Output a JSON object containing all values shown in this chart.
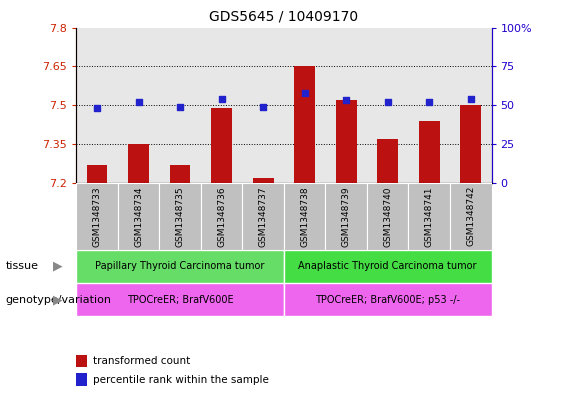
{
  "title": "GDS5645 / 10409170",
  "samples": [
    "GSM1348733",
    "GSM1348734",
    "GSM1348735",
    "GSM1348736",
    "GSM1348737",
    "GSM1348738",
    "GSM1348739",
    "GSM1348740",
    "GSM1348741",
    "GSM1348742"
  ],
  "transformed_count": [
    7.27,
    7.35,
    7.27,
    7.49,
    7.22,
    7.65,
    7.52,
    7.37,
    7.44,
    7.5
  ],
  "percentile_rank": [
    48,
    52,
    49,
    54,
    49,
    58,
    53,
    52,
    52,
    54
  ],
  "ylim_left": [
    7.2,
    7.8
  ],
  "ylim_right": [
    0,
    100
  ],
  "yticks_left": [
    7.2,
    7.35,
    7.5,
    7.65,
    7.8
  ],
  "yticks_right": [
    0,
    25,
    50,
    75,
    100
  ],
  "grid_values": [
    7.35,
    7.5,
    7.65
  ],
  "bar_color": "#bb1111",
  "dot_color": "#2222cc",
  "tissue_groups": [
    {
      "label": "Papillary Thyroid Carcinoma tumor",
      "start": 0,
      "end": 5,
      "color": "#66dd66"
    },
    {
      "label": "Anaplastic Thyroid Carcinoma tumor",
      "start": 5,
      "end": 10,
      "color": "#44dd44"
    }
  ],
  "genotype_groups": [
    {
      "label": "TPOCreER; BrafV600E",
      "start": 0,
      "end": 5,
      "color": "#ee66ee"
    },
    {
      "label": "TPOCreER; BrafV600E; p53 -/-",
      "start": 5,
      "end": 10,
      "color": "#ee66ee"
    }
  ],
  "tissue_label": "tissue",
  "genotype_label": "genotype/variation",
  "legend_items": [
    {
      "color": "#bb1111",
      "label": "transformed count"
    },
    {
      "color": "#2222cc",
      "label": "percentile rank within the sample"
    }
  ],
  "tick_color_left": "#cc2200",
  "tick_color_right": "#2200cc",
  "col_bg_color": "#bbbbbb",
  "col_bg_alpha": 0.35
}
